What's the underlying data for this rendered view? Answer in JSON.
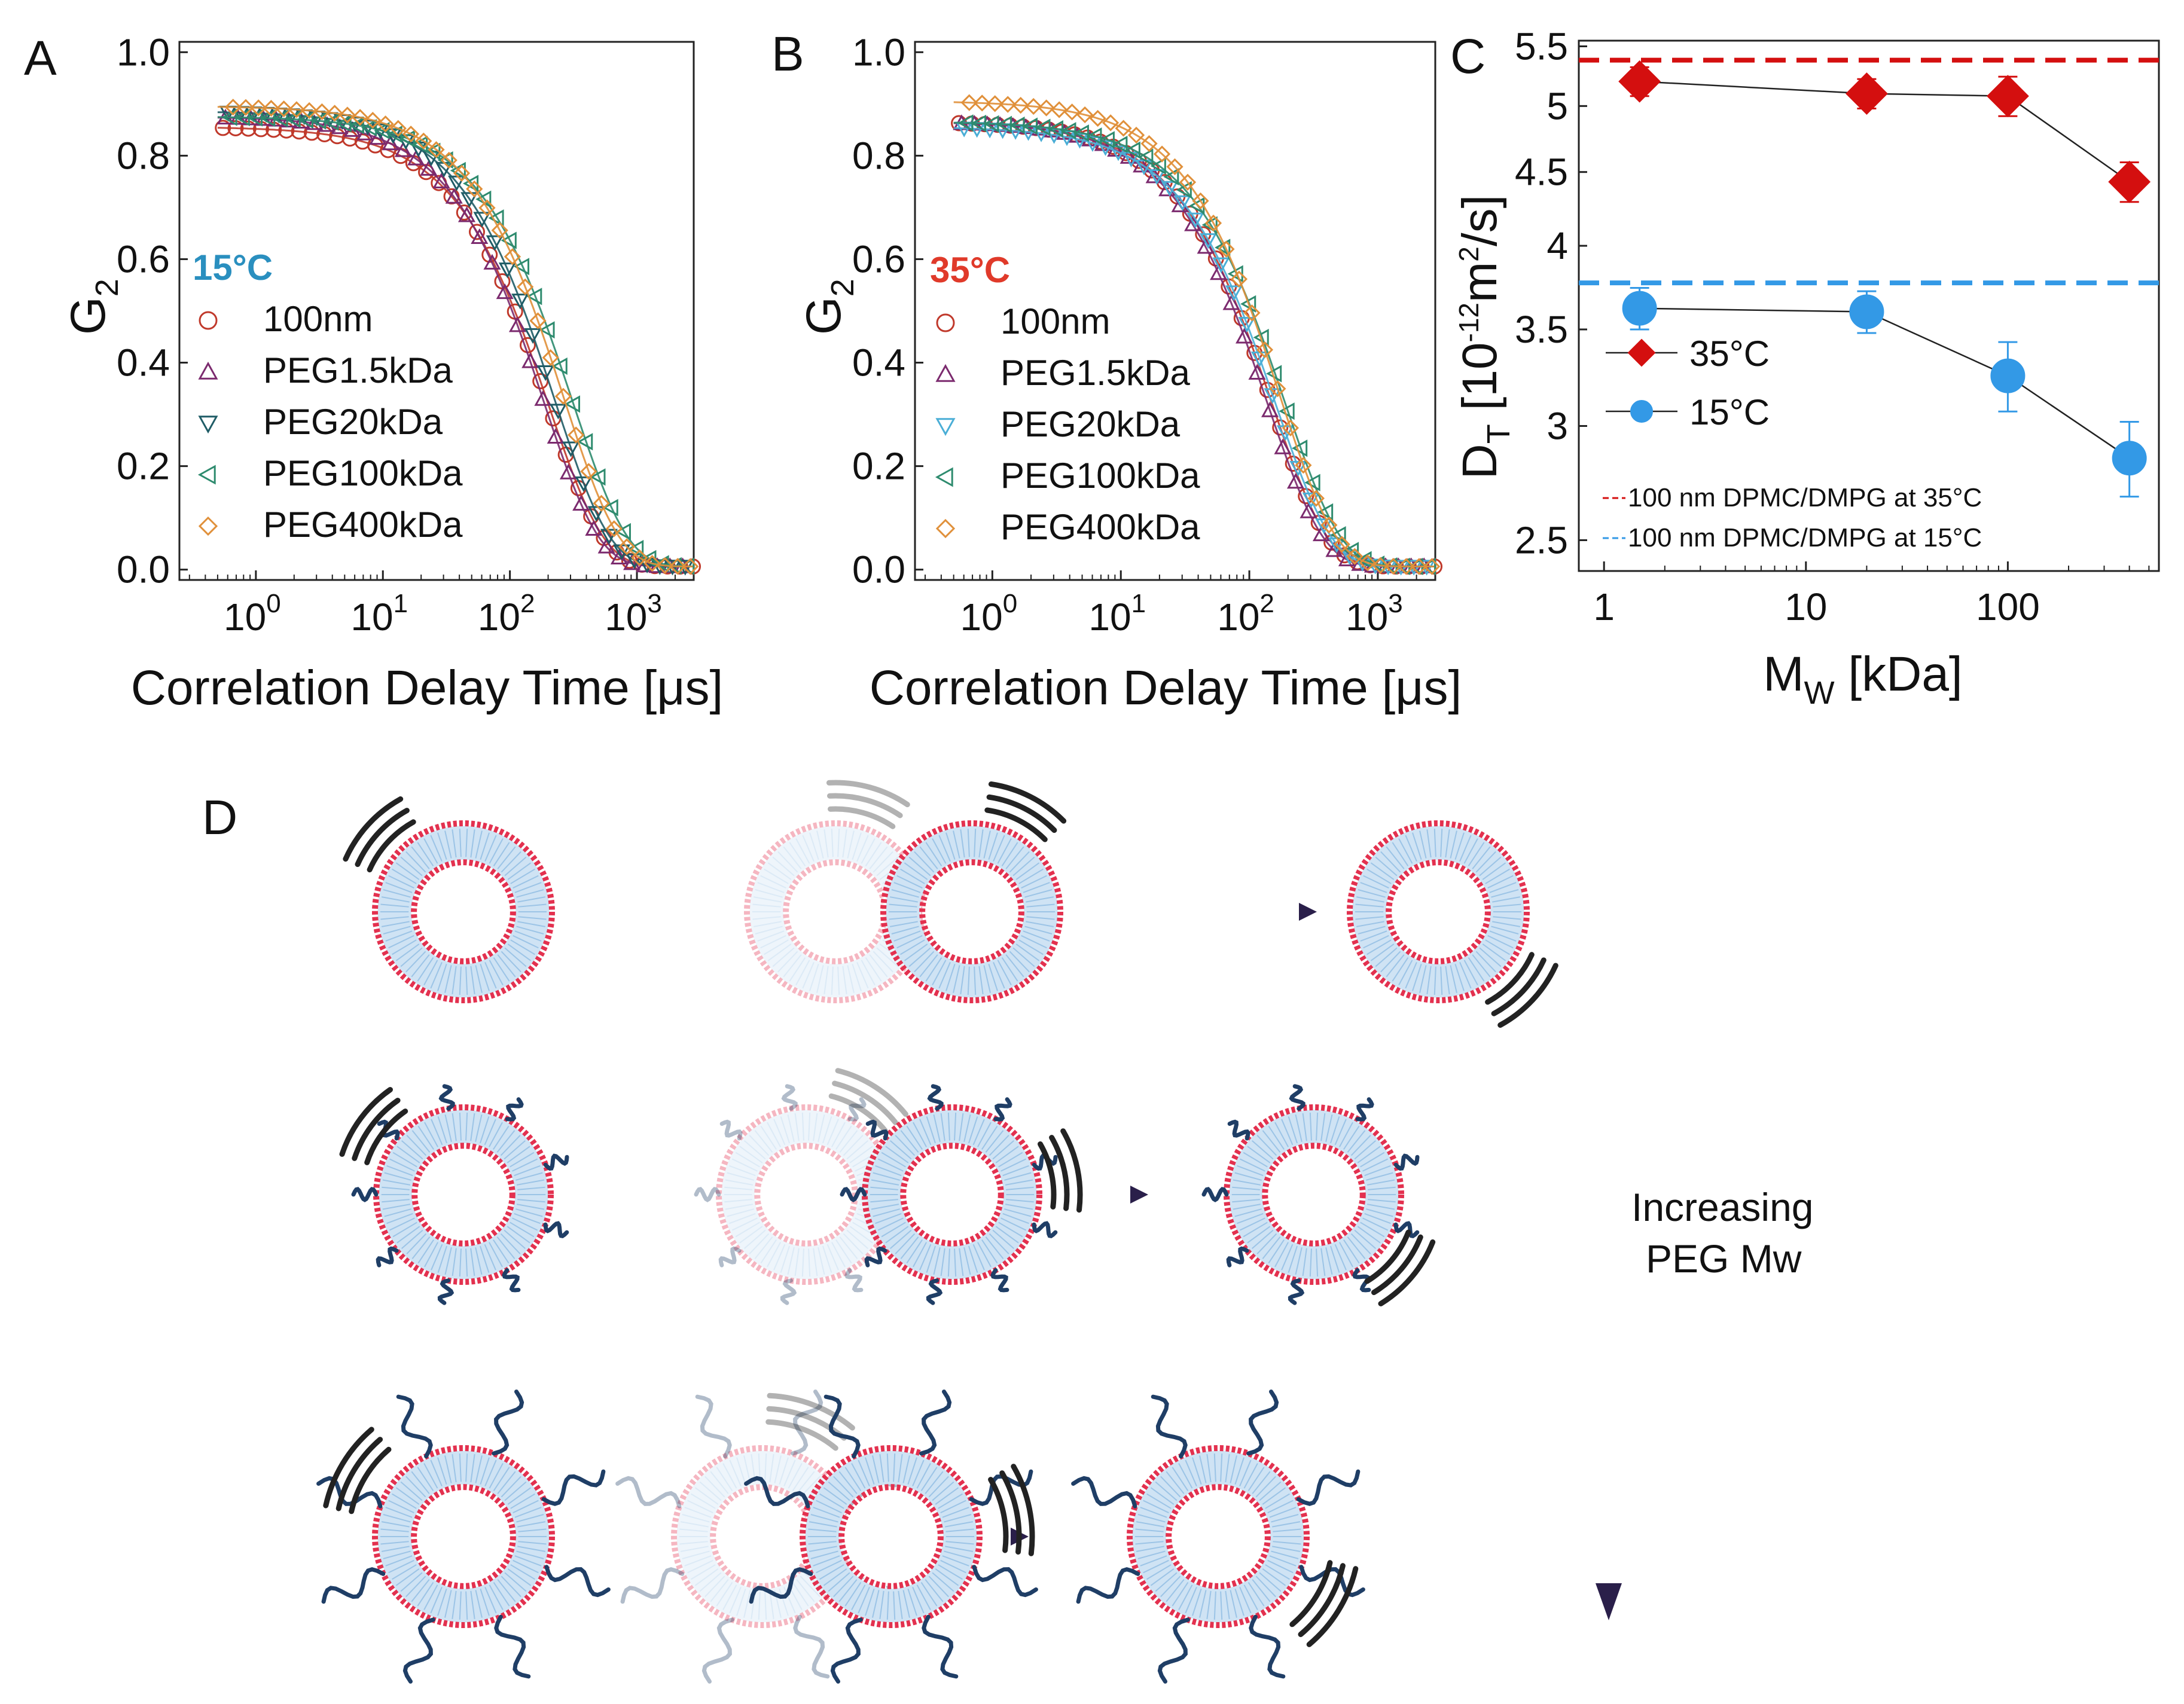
{
  "panels": {
    "a": {
      "letter": "A",
      "temp_label": "15°C",
      "temp_color": "#2a8fbf",
      "chart_data": {
        "type": "scatter",
        "title": "",
        "xlabel": "Correlation Delay Time [μs]",
        "ylabel_main": "G",
        "ylabel_sub": "2",
        "xscale": "log",
        "xlim": [
          0.25,
          2800
        ],
        "ylim": [
          -0.02,
          1.02
        ],
        "yticks": [
          "0.0",
          "0.2",
          "0.4",
          "0.6",
          "0.8",
          "1.0"
        ],
        "xticks": [
          {
            "base": "10",
            "exp": "0"
          },
          {
            "base": "10",
            "exp": "1"
          },
          {
            "base": "10",
            "exp": "2"
          },
          {
            "base": "10",
            "exp": "3"
          }
        ],
        "legend_position": "left",
        "series": [
          {
            "name": "100nm",
            "marker": "circle",
            "color": "#c0392b",
            "amplitude": 0.85,
            "tau": 175
          },
          {
            "name": "PEG1.5kDa",
            "marker": "triangle-up",
            "color": "#7b2a6e",
            "amplitude": 0.87,
            "tau": 160
          },
          {
            "name": "PEG20kDa",
            "marker": "triangle-down",
            "color": "#1f5c66",
            "amplitude": 0.88,
            "tau": 195
          },
          {
            "name": "PEG100kDa",
            "marker": "triangle-left",
            "color": "#2e8b6e",
            "amplitude": 0.87,
            "tau": 270
          },
          {
            "name": "PEG400kDa",
            "marker": "diamond",
            "color": "#e0903a",
            "amplitude": 0.89,
            "tau": 230
          }
        ]
      }
    },
    "b": {
      "letter": "B",
      "temp_label": "35°C",
      "temp_color": "#e03a2a",
      "chart_data": {
        "type": "scatter",
        "title": "",
        "xlabel": "Correlation Delay Time [μs]",
        "ylabel_main": "G",
        "ylabel_sub": "2",
        "xscale": "log",
        "xlim": [
          0.25,
          2800
        ],
        "ylim": [
          -0.02,
          1.02
        ],
        "yticks": [
          "0.0",
          "0.2",
          "0.4",
          "0.6",
          "0.8",
          "1.0"
        ],
        "xticks": [
          {
            "base": "10",
            "exp": "0"
          },
          {
            "base": "10",
            "exp": "1"
          },
          {
            "base": "10",
            "exp": "2"
          },
          {
            "base": "10",
            "exp": "3"
          }
        ],
        "legend_position": "left",
        "series": [
          {
            "name": "100nm",
            "marker": "circle",
            "color": "#c0392b",
            "amplitude": 0.86,
            "tau": 130
          },
          {
            "name": "PEG1.5kDa",
            "marker": "triangle-up",
            "color": "#7b2a6e",
            "amplitude": 0.86,
            "tau": 120
          },
          {
            "name": "PEG20kDa",
            "marker": "triangle-down",
            "color": "#4aaed6",
            "amplitude": 0.85,
            "tau": 140
          },
          {
            "name": "PEG100kDa",
            "marker": "triangle-left",
            "color": "#2e8b6e",
            "amplitude": 0.86,
            "tau": 165
          },
          {
            "name": "PEG400kDa",
            "marker": "diamond",
            "color": "#e0903a",
            "amplitude": 0.9,
            "tau": 150
          }
        ]
      }
    },
    "c": {
      "letter": "C",
      "chart_data": {
        "type": "scatter",
        "title": "",
        "xlabel_main": "M",
        "xlabel_sub": "W",
        "xlabel_rest": " [kDa]",
        "ylabel": "D_T [10^-12 m^2/s]",
        "ylabel_parts": {
          "d": "D",
          "t": "T",
          "bracket": " [10",
          "exp": "-12",
          "m": "m",
          "sq": "2",
          "tail": "/s]"
        },
        "xscale": "log",
        "yscale": "log",
        "xlim": [
          0.75,
          560
        ],
        "ylim": [
          2.38,
          5.55
        ],
        "yticks": [
          "2.5",
          "3",
          "3.5",
          "4",
          "4.5",
          "5",
          "5.5"
        ],
        "xticks": [
          "1",
          "10",
          "100"
        ],
        "series": [
          {
            "name": "35°C",
            "marker": "diamond",
            "color": "#d40f0f",
            "x": [
              1.5,
              20,
              100,
              400
            ],
            "y": [
              5.2,
              5.1,
              5.08,
              4.43
            ],
            "err": [
              0.12,
              0.12,
              0.16,
              0.14
            ]
          },
          {
            "name": "15°C",
            "marker": "circle",
            "color": "#3399e6",
            "x": [
              1.5,
              20,
              100,
              400
            ],
            "y": [
              3.62,
              3.6,
              3.25,
              2.85
            ],
            "err": [
              0.12,
              0.12,
              0.18,
              0.17
            ]
          }
        ],
        "reference_lines": [
          {
            "label": "100 nm DPMC/DMPG at 35°C",
            "value": 5.38,
            "color": "#d40f0f",
            "style": "dashed"
          },
          {
            "label": "100 nm DPMC/DMPG at 15°C",
            "value": 3.77,
            "color": "#3399e6",
            "style": "dashed"
          }
        ]
      }
    },
    "d": {
      "letter": "D",
      "arrow_label_line1": "Increasing",
      "arrow_label_line2": "PEG Mw",
      "rows": [
        {
          "peg": "none"
        },
        {
          "peg": "short"
        },
        {
          "peg": "long"
        }
      ]
    }
  }
}
